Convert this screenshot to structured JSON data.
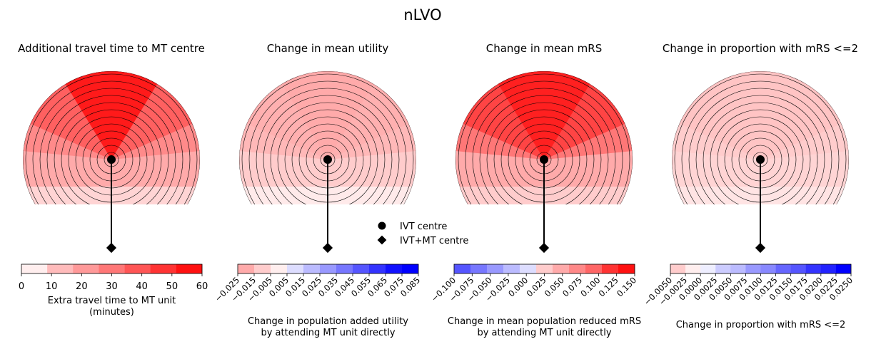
{
  "suptitle": "nLVO",
  "legend": {
    "ivt_label": "IVT centre",
    "mt_label": "IVT+MT centre"
  },
  "chart_data": [
    {
      "type": "heatmap",
      "title": "Additional travel time to MT centre",
      "colorbar": {
        "ticks": [
          "0",
          "10",
          "20",
          "30",
          "40",
          "50",
          "60"
        ],
        "colors": [
          "#ffeeee",
          "#ffbbbb",
          "#ff9999",
          "#ff7777",
          "#ff5555",
          "#ff3333",
          "#ff1111"
        ],
        "label": [
          "Extra travel time to MT unit",
          "(minutes)"
        ],
        "rotated": false
      },
      "region_colors": {
        "bottom": "#ffd4d4",
        "lower": "#ffaaaa",
        "mid": "#ff8a8a",
        "upper": "#ff6060",
        "top": "#ff1a1a"
      }
    },
    {
      "type": "heatmap",
      "title": "Change in mean utility",
      "colorbar": {
        "ticks": [
          "−0.025",
          "−0.015",
          "−0.005",
          "0.005",
          "0.015",
          "0.025",
          "0.035",
          "0.045",
          "0.055",
          "0.065",
          "0.075",
          "0.085"
        ],
        "colors": [
          "#ffaaaa",
          "#ffcccc",
          "#ffeeee",
          "#ddddff",
          "#bbbbff",
          "#9999ff",
          "#7777ff",
          "#5555ff",
          "#3333ff",
          "#1111ff",
          "#0000ff"
        ],
        "label": [
          "Change in population added utility",
          "by attending MT unit directly"
        ],
        "rotated": true
      },
      "region_colors": {
        "bottom": "#ffeaea",
        "lower": "#ffcccc",
        "mid": "#ffb8b8",
        "upper": "#ffb0b0",
        "top": "#ffaaaa"
      }
    },
    {
      "type": "heatmap",
      "title": "Change in mean mRS",
      "colorbar": {
        "ticks": [
          "−0.100",
          "−0.075",
          "−0.050",
          "−0.025",
          "0.000",
          "0.025",
          "0.050",
          "0.075",
          "0.100",
          "0.125",
          "0.150"
        ],
        "colors": [
          "#5555ff",
          "#7777ff",
          "#9999ff",
          "#bbbbff",
          "#ddddff",
          "#ffcccc",
          "#ffaaaa",
          "#ff8888",
          "#ff6666",
          "#ff3333",
          "#ff1111"
        ],
        "label": [
          "Change in mean population reduced mRS",
          "by attending MT unit directly"
        ],
        "rotated": true
      },
      "region_colors": {
        "bottom": "#ffcccc",
        "lower": "#ffaaaa",
        "mid": "#ff7777",
        "upper": "#ff4444",
        "top": "#ff2020"
      }
    },
    {
      "type": "heatmap",
      "title": "Change in proportion with mRS <=2",
      "colorbar": {
        "ticks": [
          "−0.0050",
          "−0.0025",
          "0.0000",
          "0.0025",
          "0.0050",
          "0.0075",
          "0.0100",
          "0.0125",
          "0.0150",
          "0.0175",
          "0.0200",
          "0.0225",
          "0.0250"
        ],
        "colors": [
          "#ffcccc",
          "#ffeeee",
          "#eeeeff",
          "#ccccff",
          "#bbbbff",
          "#9999ff",
          "#8888ff",
          "#6666ff",
          "#5555ff",
          "#3333ff",
          "#2222ff",
          "#0000ff"
        ],
        "label": [
          "Change in proportion with mRS <=2"
        ],
        "rotated": true
      },
      "region_colors": {
        "bottom": "#ffe4e4",
        "lower": "#ffd4d4",
        "mid": "#ffcccc",
        "upper": "#ffc4c4",
        "top": "#ffc4c4"
      }
    }
  ]
}
